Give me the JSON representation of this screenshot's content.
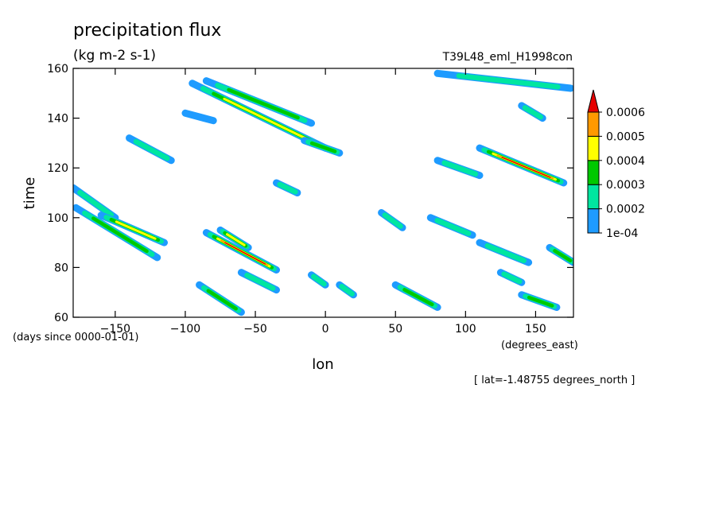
{
  "chart_data": {
    "type": "heatmap",
    "title": "precipitation flux",
    "units": "(kg m-2 s-1)",
    "dataset": "T39L48_eml_H1998con",
    "xlabel": "lon",
    "x_units": "(degrees_east)",
    "ylabel": "time",
    "y_units": "(days since 0000-01-01)",
    "slice_label": "[ lat=-1.48755 degrees_north ]",
    "xlim": [
      -180,
      177
    ],
    "ylim": [
      60,
      160
    ],
    "x_ticks": [
      -150,
      -100,
      -50,
      0,
      50,
      100,
      150
    ],
    "y_ticks": [
      60,
      80,
      100,
      120,
      140,
      160
    ],
    "colorbar": {
      "levels": [
        "1e-04",
        "0.0002",
        "0.0003",
        "0.0004",
        "0.0005",
        "0.0006"
      ],
      "colors": [
        "#1e9bff",
        "#00e6a0",
        "#00c800",
        "#ffff00",
        "#ff9900",
        "#e60000"
      ],
      "extend": "max"
    },
    "features": [
      {
        "lon_start": -95,
        "time_start": 154,
        "lon_end": 0,
        "time_end": 128,
        "peak_level": "0.0004"
      },
      {
        "lon_start": -85,
        "time_start": 155,
        "lon_end": -10,
        "time_end": 138,
        "peak_level": "0.0003"
      },
      {
        "lon_start": -140,
        "time_start": 132,
        "lon_end": -110,
        "time_end": 123,
        "peak_level": "0.0002"
      },
      {
        "lon_start": -100,
        "time_start": 142,
        "lon_end": -80,
        "time_end": 139,
        "peak_level": "1e-04"
      },
      {
        "lon_start": -15,
        "time_start": 131,
        "lon_end": 10,
        "time_end": 126,
        "peak_level": "0.0003"
      },
      {
        "lon_start": 110,
        "time_start": 128,
        "lon_end": 170,
        "time_end": 114,
        "peak_level": "0.0006"
      },
      {
        "lon_start": 80,
        "time_start": 123,
        "lon_end": 110,
        "time_end": 117,
        "peak_level": "0.0002"
      },
      {
        "lon_start": 80,
        "time_start": 158,
        "lon_end": 175,
        "time_end": 152,
        "peak_level": "0.0002"
      },
      {
        "lon_start": 140,
        "time_start": 145,
        "lon_end": 155,
        "time_end": 140,
        "peak_level": "0.0002"
      },
      {
        "lon_start": -180,
        "time_start": 112,
        "lon_end": -150,
        "time_end": 100,
        "peak_level": "0.0002"
      },
      {
        "lon_start": -178,
        "time_start": 104,
        "lon_end": -120,
        "time_end": 84,
        "peak_level": "0.0003"
      },
      {
        "lon_start": -160,
        "time_start": 101,
        "lon_end": -115,
        "time_end": 90,
        "peak_level": "0.0004"
      },
      {
        "lon_start": -85,
        "time_start": 94,
        "lon_end": -35,
        "time_end": 79,
        "peak_level": "0.0006"
      },
      {
        "lon_start": -75,
        "time_start": 95,
        "lon_end": -55,
        "time_end": 88,
        "peak_level": "0.0004"
      },
      {
        "lon_start": -35,
        "time_start": 114,
        "lon_end": -20,
        "time_end": 110,
        "peak_level": "0.0002"
      },
      {
        "lon_start": 40,
        "time_start": 102,
        "lon_end": 55,
        "time_end": 96,
        "peak_level": "0.0002"
      },
      {
        "lon_start": 75,
        "time_start": 100,
        "lon_end": 105,
        "time_end": 93,
        "peak_level": "0.0002"
      },
      {
        "lon_start": 110,
        "time_start": 90,
        "lon_end": 145,
        "time_end": 82,
        "peak_level": "0.0002"
      },
      {
        "lon_start": 160,
        "time_start": 88,
        "lon_end": 177,
        "time_end": 82,
        "peak_level": "0.0003"
      },
      {
        "lon_start": -60,
        "time_start": 78,
        "lon_end": -35,
        "time_end": 71,
        "peak_level": "0.0002"
      },
      {
        "lon_start": -90,
        "time_start": 73,
        "lon_end": -60,
        "time_end": 62,
        "peak_level": "0.0003"
      },
      {
        "lon_start": -10,
        "time_start": 77,
        "lon_end": 0,
        "time_end": 73,
        "peak_level": "0.0002"
      },
      {
        "lon_start": 10,
        "time_start": 73,
        "lon_end": 20,
        "time_end": 69,
        "peak_level": "0.0002"
      },
      {
        "lon_start": 50,
        "time_start": 73,
        "lon_end": 80,
        "time_end": 64,
        "peak_level": "0.0003"
      },
      {
        "lon_start": 125,
        "time_start": 78,
        "lon_end": 140,
        "time_end": 74,
        "peak_level": "0.0002"
      },
      {
        "lon_start": 140,
        "time_start": 69,
        "lon_end": 165,
        "time_end": 64,
        "peak_level": "0.0003"
      }
    ]
  }
}
